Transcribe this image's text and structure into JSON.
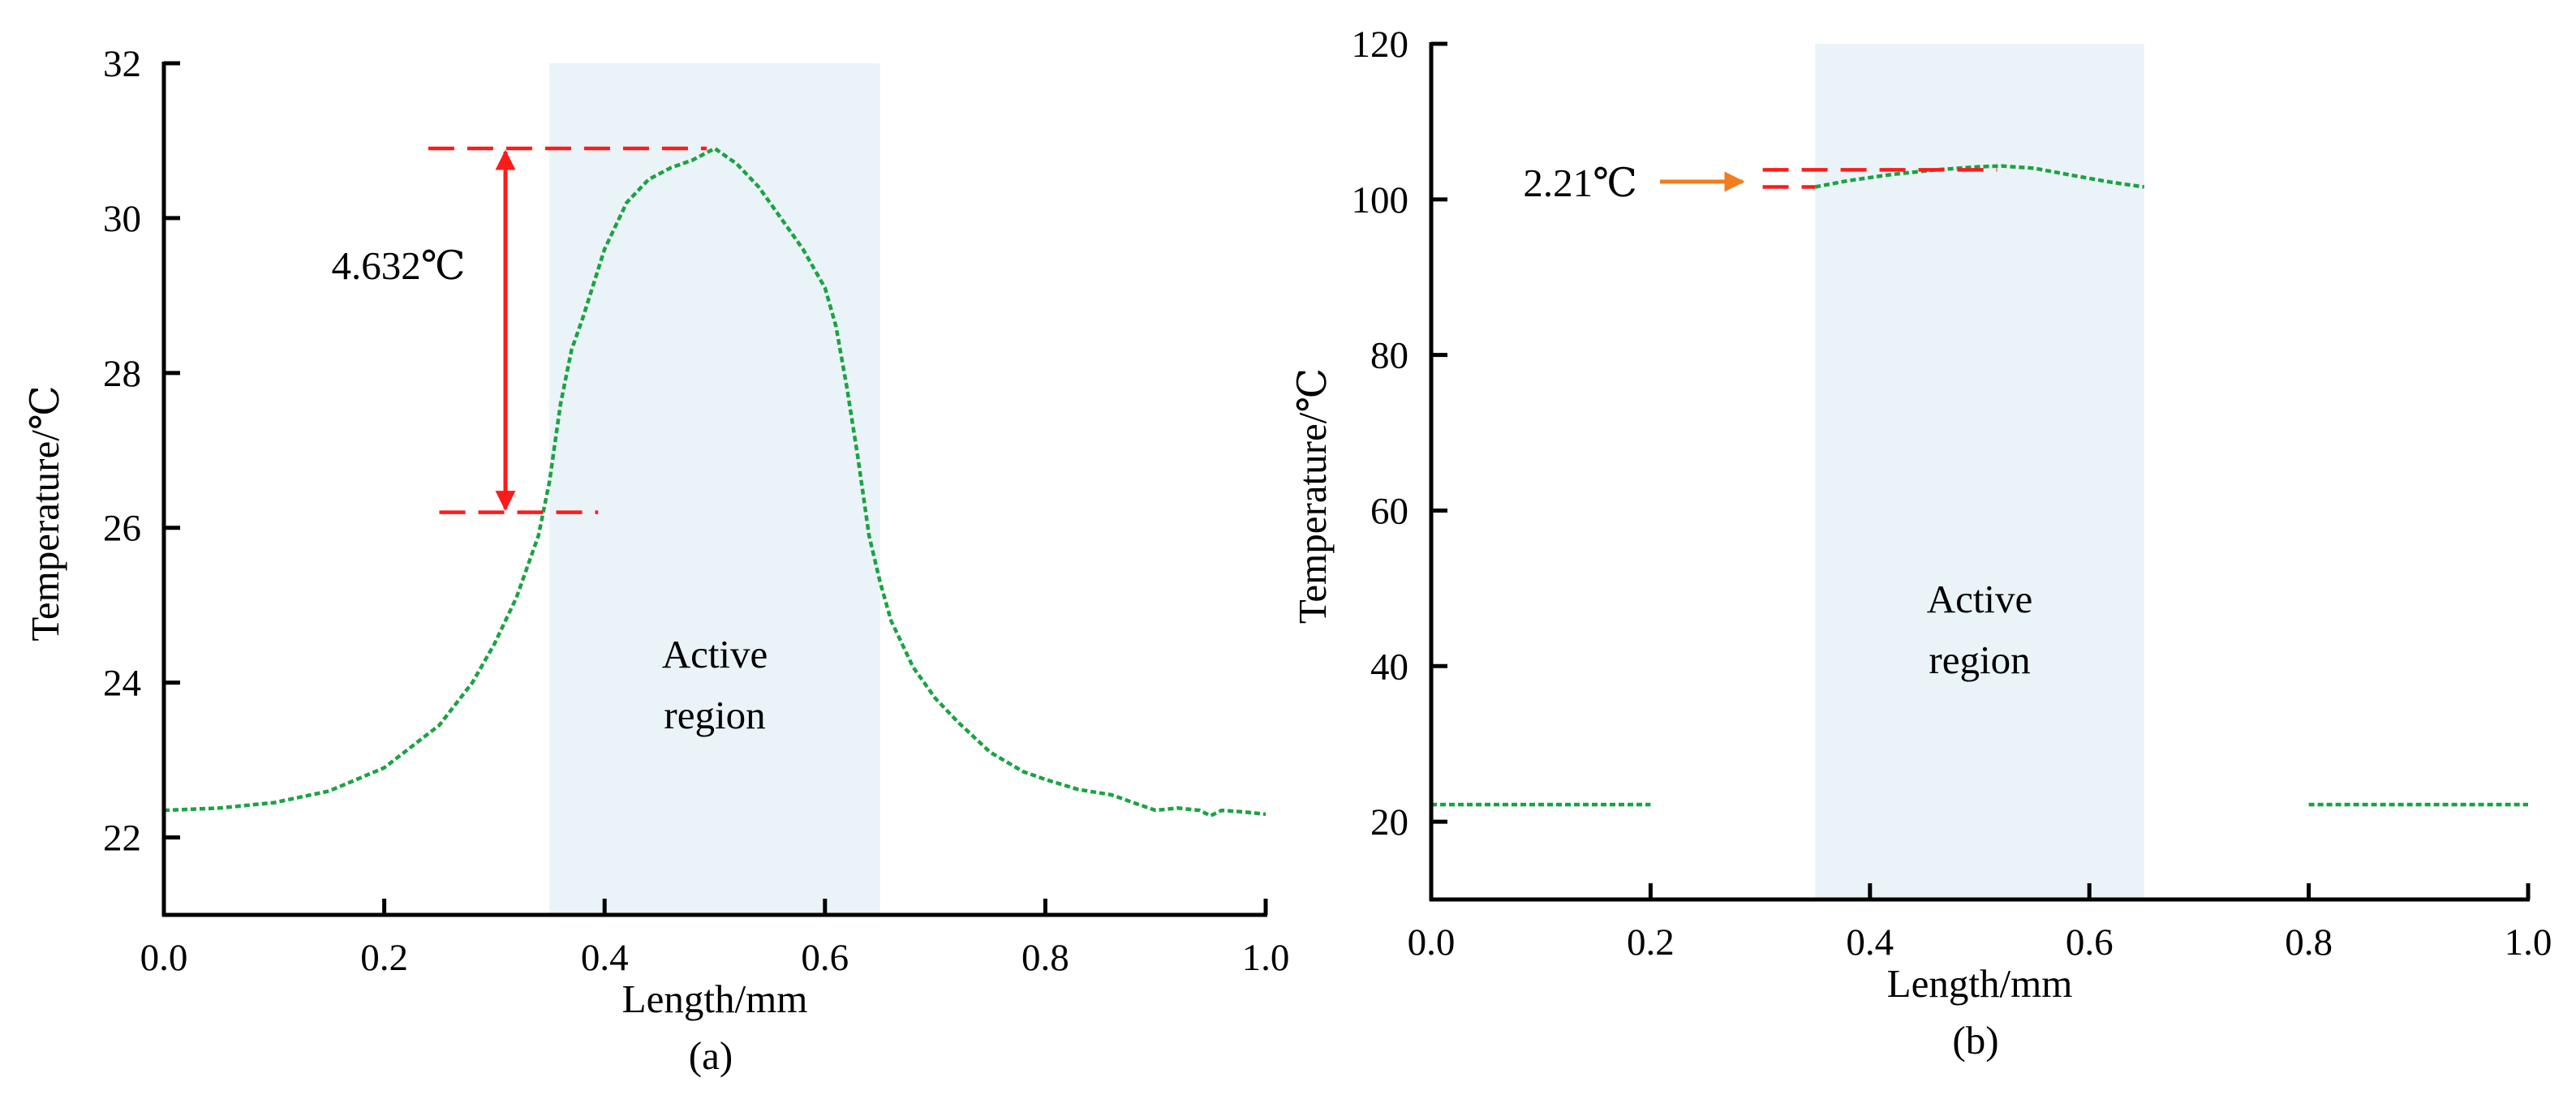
{
  "figure": {
    "colors": {
      "curve": "#1aa341",
      "region": "#eaf3f7",
      "marker": "#ff1a1a",
      "arrow_b": "#f07d1e",
      "axis": "#000000"
    }
  },
  "chart_data": [
    {
      "type": "line",
      "panel_label": "(a)",
      "xlabel": "Length/mm",
      "ylabel": "Temperature/℃",
      "xlim": [
        0.0,
        1.0
      ],
      "ylim": [
        21,
        32
      ],
      "xticks": [
        "0.0",
        "0.2",
        "0.4",
        "0.6",
        "0.8",
        "1.0"
      ],
      "xtick_values": [
        0.0,
        0.2,
        0.4,
        0.6,
        0.8,
        1.0
      ],
      "yticks": [
        "22",
        "24",
        "26",
        "28",
        "30",
        "32"
      ],
      "ytick_values": [
        22,
        24,
        26,
        28,
        30,
        32
      ],
      "active_region": {
        "x_start": 0.35,
        "x_end": 0.65,
        "label_line1": "Active",
        "label_line2": "region"
      },
      "annotation": {
        "text": "4.632℃",
        "y_top": 30.9,
        "y_bottom": 26.2,
        "x_arrow": 0.31,
        "top_x_range": [
          0.24,
          0.5
        ],
        "bottom_x_range": [
          0.25,
          0.4
        ]
      },
      "series": [
        {
          "name": "temperature",
          "style": "dotted",
          "x": [
            0.0,
            0.05,
            0.1,
            0.15,
            0.2,
            0.25,
            0.28,
            0.3,
            0.32,
            0.34,
            0.35,
            0.36,
            0.37,
            0.38,
            0.4,
            0.42,
            0.44,
            0.46,
            0.48,
            0.5,
            0.52,
            0.54,
            0.56,
            0.58,
            0.6,
            0.61,
            0.62,
            0.63,
            0.64,
            0.65,
            0.66,
            0.68,
            0.7,
            0.72,
            0.75,
            0.78,
            0.8,
            0.83,
            0.86,
            0.88,
            0.9,
            0.92,
            0.94,
            0.95,
            0.96,
            0.98,
            1.0
          ],
          "y": [
            22.35,
            22.38,
            22.45,
            22.6,
            22.9,
            23.45,
            24.0,
            24.5,
            25.1,
            25.9,
            26.6,
            27.6,
            28.3,
            28.7,
            29.6,
            30.2,
            30.5,
            30.65,
            30.75,
            30.9,
            30.7,
            30.4,
            30.0,
            29.6,
            29.1,
            28.6,
            27.8,
            26.9,
            25.9,
            25.3,
            24.8,
            24.2,
            23.8,
            23.5,
            23.1,
            22.85,
            22.75,
            22.62,
            22.55,
            22.45,
            22.35,
            22.38,
            22.35,
            22.28,
            22.35,
            22.33,
            22.3
          ]
        }
      ]
    },
    {
      "type": "line",
      "panel_label": "(b)",
      "xlabel": "Length/mm",
      "ylabel": "Temperature/℃",
      "xlim": [
        0.0,
        1.0
      ],
      "ylim": [
        10,
        120
      ],
      "xticks": [
        "0.0",
        "0.2",
        "0.4",
        "0.6",
        "0.8",
        "1.0"
      ],
      "xtick_values": [
        0.0,
        0.2,
        0.4,
        0.6,
        0.8,
        1.0
      ],
      "yticks": [
        "20",
        "40",
        "60",
        "80",
        "100",
        "120"
      ],
      "ytick_values": [
        20,
        40,
        60,
        80,
        100,
        120
      ],
      "active_region": {
        "x_start": 0.35,
        "x_end": 0.65,
        "label_line1": "Active",
        "label_line2": "region"
      },
      "annotation": {
        "text": "2.21℃",
        "y_top": 103.8,
        "y_bottom": 101.6,
        "arrow_y": 102.4,
        "arrow_x_range": [
          0.2,
          0.28
        ],
        "top_x_range": [
          0.28,
          0.49
        ],
        "bottom_x_range": [
          0.28,
          0.35
        ]
      },
      "series": [
        {
          "name": "left",
          "style": "dotted",
          "x": [
            0.0,
            0.2
          ],
          "y": [
            22.2,
            22.2
          ]
        },
        {
          "name": "center",
          "style": "dotted",
          "x": [
            0.35,
            0.38,
            0.42,
            0.46,
            0.5,
            0.52,
            0.55,
            0.58,
            0.62,
            0.65
          ],
          "y": [
            101.6,
            102.4,
            103.2,
            103.8,
            104.2,
            104.3,
            104.0,
            103.2,
            102.2,
            101.6
          ]
        },
        {
          "name": "right",
          "style": "dotted",
          "x": [
            0.8,
            1.0
          ],
          "y": [
            22.2,
            22.2
          ]
        }
      ]
    }
  ]
}
